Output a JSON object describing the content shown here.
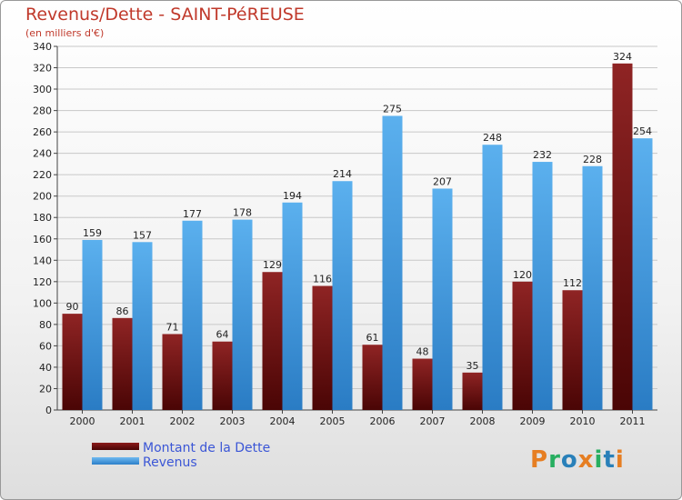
{
  "chart_data": {
    "type": "bar",
    "title": "Revenus/Dette - SAINT-PéREUSE",
    "subtitle": "(en milliers d'€)",
    "categories": [
      "2000",
      "2001",
      "2002",
      "2003",
      "2004",
      "2005",
      "2006",
      "2007",
      "2008",
      "2009",
      "2010",
      "2011"
    ],
    "series": [
      {
        "name": "Montant de la Dette",
        "values": [
          90,
          86,
          71,
          64,
          129,
          116,
          61,
          48,
          35,
          120,
          112,
          324
        ],
        "color": "#8b1a1a"
      },
      {
        "name": "Revenus",
        "values": [
          159,
          157,
          177,
          178,
          194,
          214,
          275,
          207,
          248,
          232,
          228,
          254
        ],
        "color": "#3a98e0"
      }
    ],
    "ylim": [
      0,
      340
    ],
    "yticks": [
      0,
      20,
      40,
      60,
      80,
      100,
      120,
      140,
      160,
      180,
      200,
      220,
      240,
      260,
      280,
      300,
      320,
      340
    ],
    "grid": true,
    "legend_position": "bottom-left"
  },
  "logo": {
    "letters": [
      "P",
      "r",
      "o",
      "x",
      "i",
      "t",
      "i"
    ],
    "colors": [
      "#e67e22",
      "#27ae60",
      "#2980b9",
      "#e67e22",
      "#27ae60",
      "#2980b9",
      "#e67e22"
    ]
  }
}
